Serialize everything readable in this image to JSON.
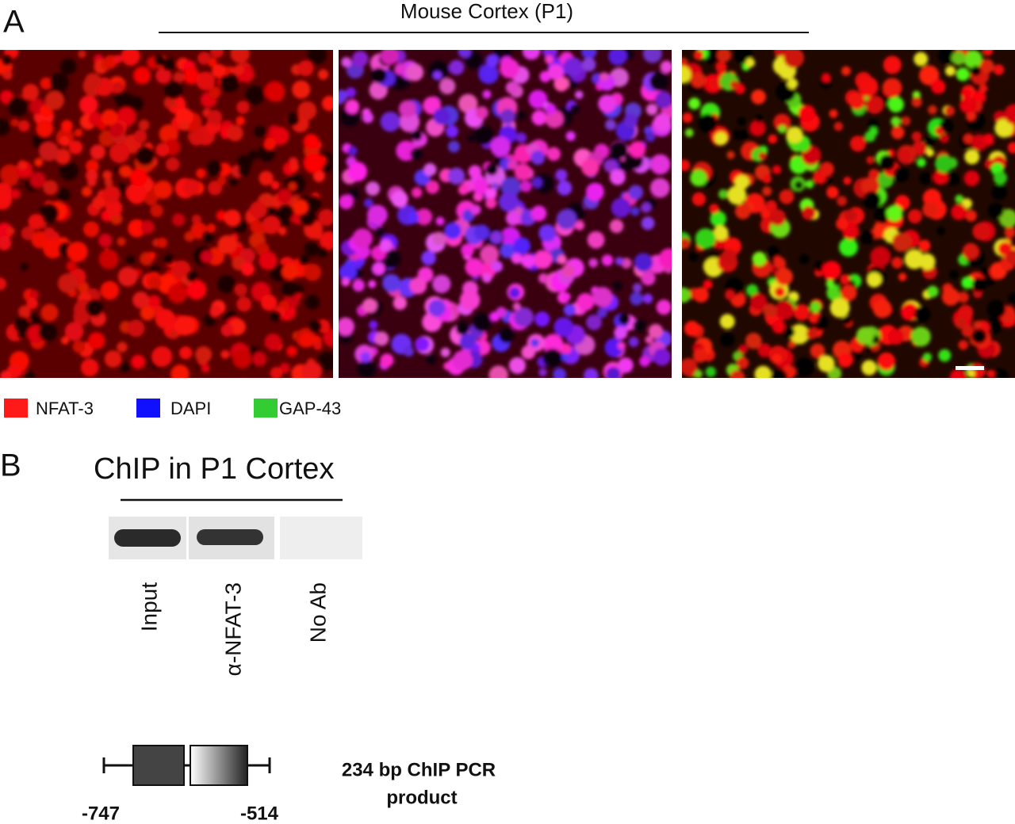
{
  "panel_a": {
    "label": "A",
    "title": "Mouse Cortex (P1)",
    "legend": [
      {
        "name": "NFAT-3",
        "color": "#ff1a1a"
      },
      {
        "name": "DAPI",
        "color": "#1010ff"
      },
      {
        "name": "GAP-43",
        "color": "#33cc33"
      }
    ]
  },
  "panel_b": {
    "label": "B",
    "title": "ChIP in P1 Cortex",
    "lanes": [
      "Input",
      "α-NFAT-3",
      "No Ab"
    ],
    "product_label": [
      "234 bp ChIP PCR",
      "product"
    ],
    "positions": [
      "-747",
      "-514"
    ]
  }
}
